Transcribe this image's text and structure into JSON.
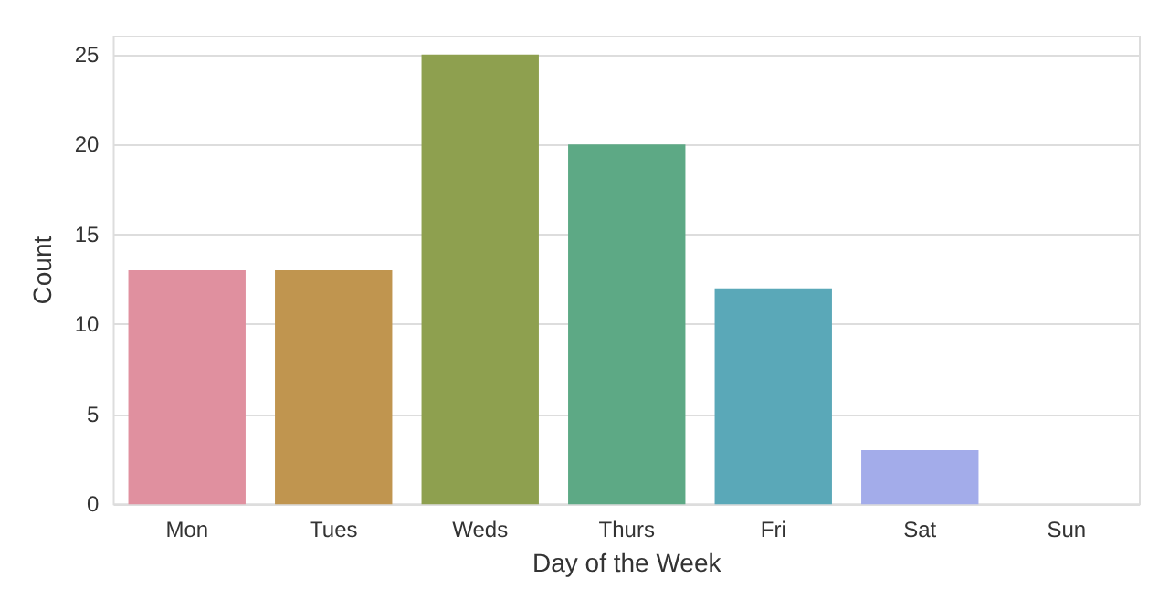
{
  "chart_data": {
    "type": "bar",
    "xlabel": "Day of the Week",
    "ylabel": "Count",
    "categories": [
      "Mon",
      "Tues",
      "Weds",
      "Thurs",
      "Fri",
      "Sat",
      "Sun"
    ],
    "values": [
      13,
      13,
      25,
      20,
      12,
      3,
      0
    ],
    "colors": [
      "#e0909f",
      "#c0954f",
      "#8ea04f",
      "#5da985",
      "#5aa8b8",
      "#a3acea",
      "#e48fd8"
    ],
    "ylim": [
      0,
      26
    ],
    "yticks": [
      0,
      5,
      10,
      15,
      20,
      25
    ],
    "grid": "y"
  }
}
